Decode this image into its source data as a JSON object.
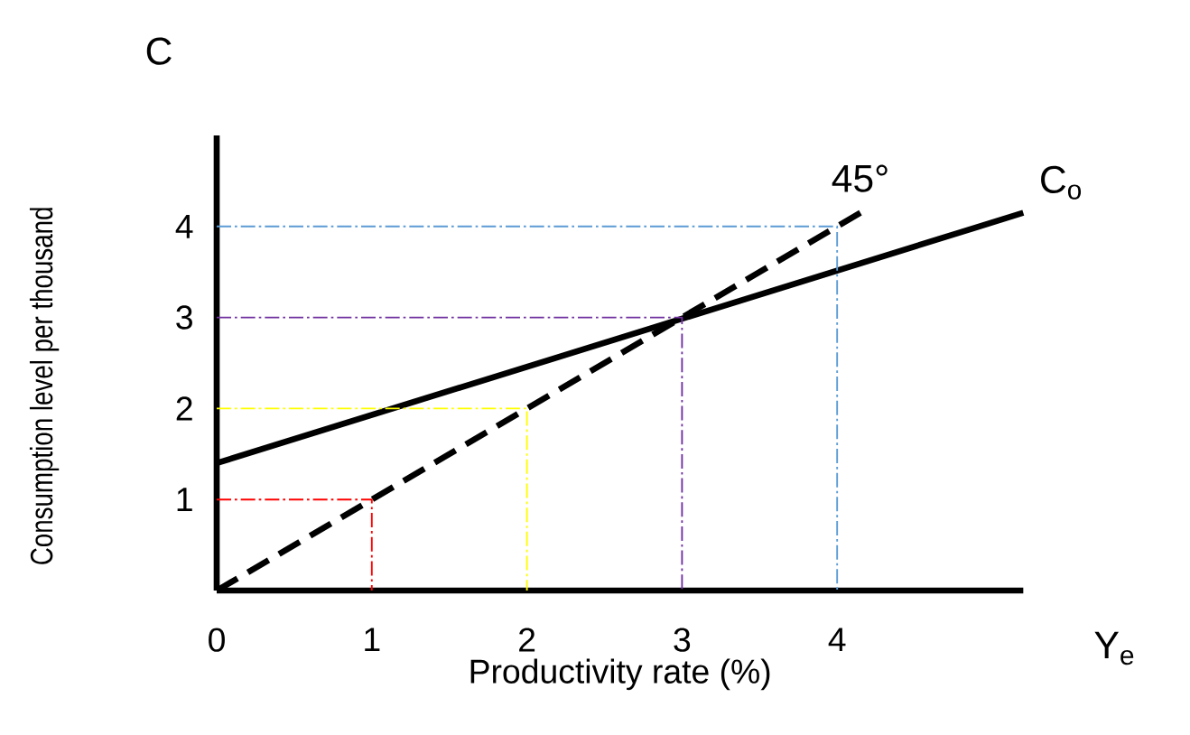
{
  "chart_data": {
    "type": "line",
    "xlabel": "Productivity rate (%)",
    "ylabel": "Consumption level per thousand",
    "annotations": [
      "C",
      "Y$_{e}$"
    ],
    "xlim": [
      0,
      5.2
    ],
    "ylim": [
      0,
      5
    ],
    "xticks": [
      0,
      1,
      2,
      3,
      4
    ],
    "yticks": [
      1,
      2,
      3,
      4
    ],
    "series": [
      {
        "name": "C$_{o}$",
        "color": "#000000",
        "line_style": "solid",
        "x": [
          0,
          5.2
        ],
        "values": [
          1.4,
          4.15
        ]
      },
      {
        "name": "45°",
        "color": "#000000",
        "line_style": "dashed",
        "x": [
          0,
          4.15
        ],
        "values": [
          0,
          4.15
        ]
      },
      {
        "color": "#ff0000",
        "line_style": "dashdot",
        "x": [
          0,
          1,
          1
        ],
        "values": [
          1,
          1,
          0
        ]
      },
      {
        "color": "#ffff00",
        "line_style": "dashdot",
        "x": [
          0,
          2,
          2
        ],
        "values": [
          2,
          2,
          0
        ]
      },
      {
        "color": "#7030a0",
        "line_style": "dashdot",
        "x": [
          0,
          3,
          3
        ],
        "values": [
          3,
          3,
          0
        ]
      },
      {
        "color": "#5b9bd5",
        "line_style": "dashdot",
        "x": [
          0,
          4,
          4
        ],
        "values": [
          4,
          4,
          0
        ]
      }
    ]
  }
}
